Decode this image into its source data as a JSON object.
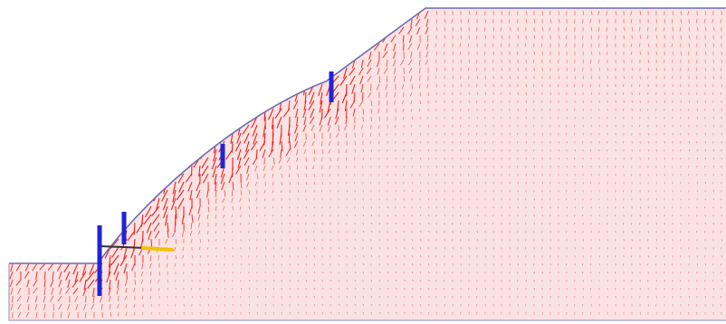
{
  "model": {
    "domain_fill": "#fbe3e3",
    "domain_outline": "#6a6fae",
    "vector_color": "#ee1c1c",
    "pile_color": "#2222d6",
    "anchor_color": "#f2c200",
    "anchor_line_color": "#333333"
  }
}
